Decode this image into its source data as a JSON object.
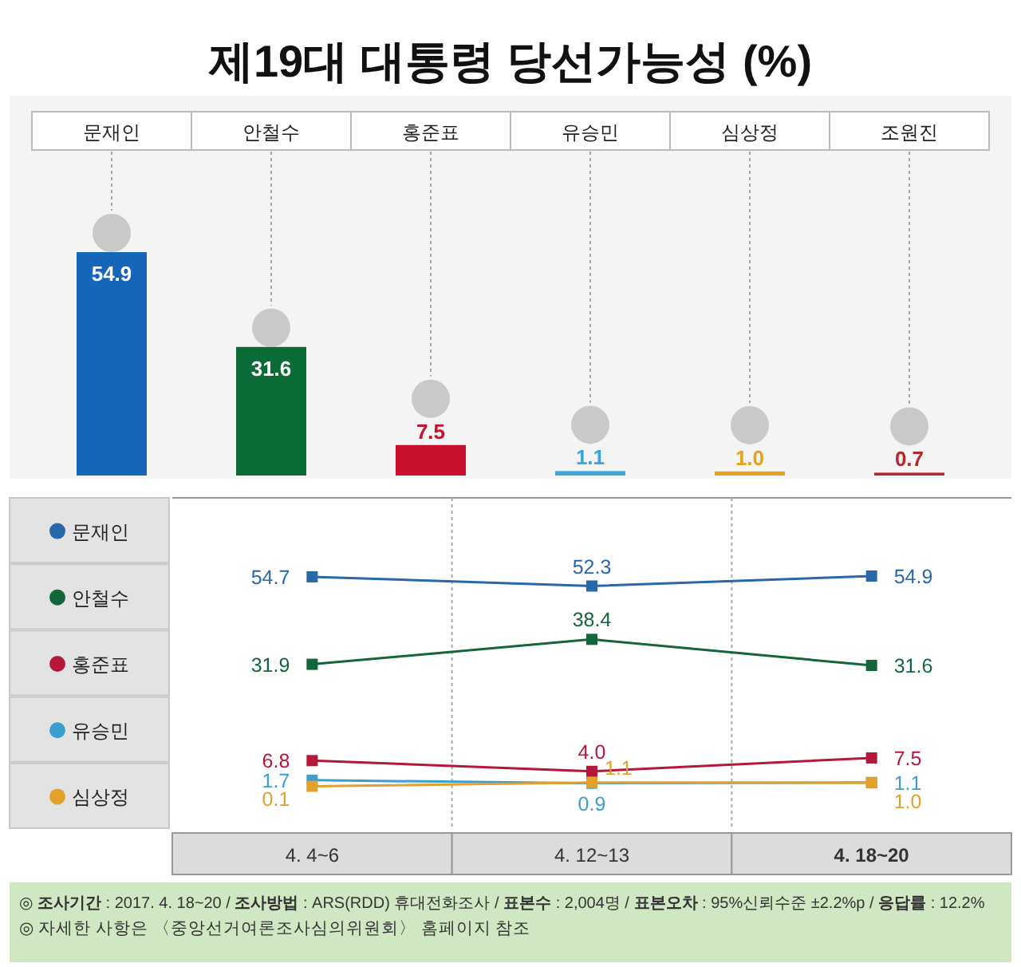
{
  "chart_data": [
    {
      "type": "bar",
      "title": "제19대 대통령 당선가능성 (%)",
      "categories": [
        "문재인",
        "안철수",
        "홍준표",
        "유승민",
        "심상정",
        "조원진"
      ],
      "values": [
        54.9,
        31.6,
        7.5,
        1.1,
        1.0,
        0.7
      ],
      "colors": [
        "#1565b8",
        "#0b6b36",
        "#c8102e",
        "#3aa6dc",
        "#e8a21a",
        "#b3282d"
      ],
      "value_labels": [
        "54.9",
        "31.6",
        "7.5",
        "1.1",
        "1.0",
        "0.7"
      ],
      "grid": "x"
    },
    {
      "type": "line",
      "categories": [
        "4. 4~6",
        "4. 12~13",
        "4. 18~20"
      ],
      "series": [
        {
          "name": "문재인",
          "color": "#2867a8",
          "values": [
            54.7,
            52.3,
            54.9
          ],
          "value_labels": [
            "54.7",
            "52.3",
            "54.9"
          ]
        },
        {
          "name": "안철수",
          "color": "#13653a",
          "values": [
            31.9,
            38.4,
            31.6
          ],
          "value_labels": [
            "31.9",
            "38.4",
            "31.6"
          ]
        },
        {
          "name": "홍준표",
          "color": "#b5173a",
          "values": [
            6.8,
            4.0,
            7.5
          ],
          "value_labels": [
            "6.8",
            "4.0",
            "7.5"
          ]
        },
        {
          "name": "유승민",
          "color": "#3a9fcf",
          "values": [
            1.7,
            0.9,
            1.1
          ],
          "value_labels": [
            "1.7",
            "0.9",
            "1.1"
          ]
        },
        {
          "name": "심상정",
          "color": "#e3a02a",
          "values": [
            0.1,
            1.1,
            1.0
          ],
          "value_labels": [
            "0.1",
            "1.1",
            "1.0"
          ]
        }
      ],
      "marker": "square",
      "legend": "left",
      "annotations": [
        "◎ **조사기간** : 2017. 4. 18~20 / **조사방법** : ARS(RDD) 휴대전화조사 / **표본수** : 2,004명 / **표본오차** : 95%신뢰수준 ±2.2%p / **응답률** : 12.2%",
        "◎ 자세한 사항은 〈중앙선거여론조사심의위원회〉 홈페이지 참조"
      ]
    }
  ]
}
